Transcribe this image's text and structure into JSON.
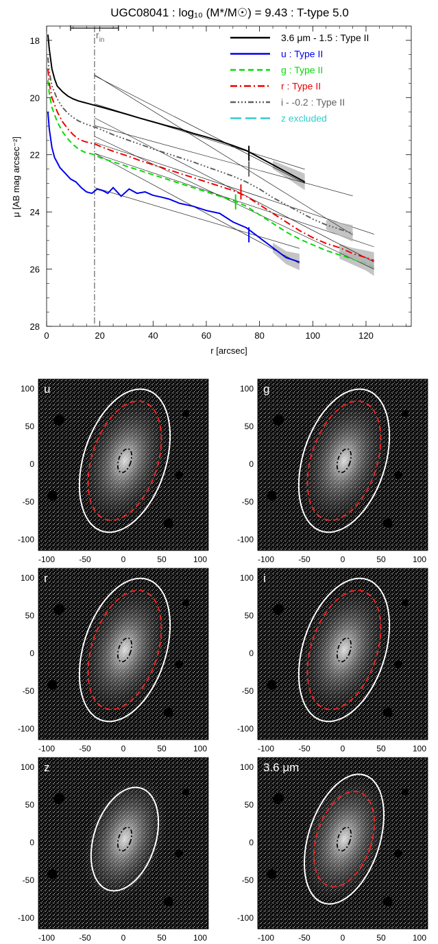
{
  "chart_data": {
    "type": "line",
    "title": "UGC08041 : log₁₀ (M*/M☉) = 9.43 : T-type 5.0",
    "xlabel": "r [arcsec]",
    "ylabel": "μ [AB mag arcsec⁻²]",
    "xlim": [
      0,
      137
    ],
    "ylim": [
      28,
      17.5
    ],
    "xticks": [
      0,
      20,
      40,
      60,
      80,
      100,
      120
    ],
    "yticks": [
      18,
      20,
      22,
      24,
      26,
      28
    ],
    "grid": false,
    "legend_position": "top-right",
    "r_in": 18,
    "r_in_label": "r_in",
    "r_in_bar": [
      9,
      27
    ],
    "series": [
      {
        "name": "3.6 μm - 1.5 : Type II",
        "color": "#000000",
        "dash": "solid",
        "x": [
          0.5,
          1,
          2,
          3,
          4,
          6,
          8,
          10,
          12,
          14,
          16,
          18,
          20,
          25,
          30,
          35,
          40,
          45,
          50,
          55,
          60,
          65,
          70,
          75,
          80,
          85,
          90,
          95,
          97
        ],
        "y": [
          17.8,
          18.3,
          19.0,
          19.35,
          19.6,
          19.8,
          19.95,
          20.05,
          20.12,
          20.17,
          20.22,
          20.27,
          20.32,
          20.45,
          20.58,
          20.72,
          20.85,
          20.98,
          21.1,
          21.25,
          21.38,
          21.52,
          21.68,
          21.85,
          22.1,
          22.35,
          22.6,
          22.85,
          22.95
        ],
        "break_r": 76,
        "break_mu": 21.95
      },
      {
        "name": "u : Type II",
        "color": "#0000ee",
        "dash": "solid",
        "x": [
          0.5,
          1,
          2,
          3,
          5,
          7,
          9,
          11,
          13,
          15,
          17,
          19,
          21,
          23,
          25,
          28,
          31,
          34,
          37,
          40,
          43,
          46,
          50,
          55,
          60,
          65,
          70,
          75,
          80,
          85,
          90,
          95
        ],
        "y": [
          20.5,
          21.1,
          21.75,
          22.1,
          22.45,
          22.65,
          22.85,
          22.95,
          23.15,
          23.3,
          23.35,
          23.2,
          23.25,
          23.35,
          23.15,
          23.45,
          23.2,
          23.35,
          23.3,
          23.42,
          23.48,
          23.55,
          23.7,
          23.8,
          23.95,
          24.05,
          24.35,
          24.55,
          24.9,
          25.25,
          25.6,
          25.75
        ],
        "break_r": 76,
        "break_mu": 24.8
      },
      {
        "name": "g : Type II",
        "color": "#00dd00",
        "dash": "8,5",
        "x": [
          0.5,
          1,
          2,
          4,
          6,
          8,
          10,
          12,
          14,
          16,
          18,
          20,
          25,
          30,
          35,
          40,
          45,
          50,
          55,
          60,
          65,
          70,
          75,
          80,
          85,
          90,
          95,
          100,
          105,
          110,
          115,
          120,
          123
        ],
        "y": [
          19.4,
          19.85,
          20.35,
          20.85,
          21.2,
          21.45,
          21.65,
          21.8,
          21.9,
          21.95,
          22.0,
          22.1,
          22.25,
          22.4,
          22.55,
          22.7,
          22.85,
          23.0,
          23.15,
          23.3,
          23.45,
          23.6,
          23.8,
          24.1,
          24.4,
          24.7,
          24.95,
          25.15,
          25.35,
          25.5,
          25.65,
          25.8,
          25.95
        ],
        "break_r": 71,
        "break_mu": 23.65
      },
      {
        "name": "r : Type II",
        "color": "#ee0000",
        "dash": "10,4,2,4",
        "x": [
          0.5,
          1,
          2,
          4,
          6,
          8,
          10,
          12,
          14,
          16,
          18,
          20,
          25,
          30,
          35,
          40,
          45,
          50,
          55,
          60,
          65,
          70,
          75,
          80,
          85,
          90,
          95,
          100,
          105,
          110,
          115,
          120,
          123
        ],
        "y": [
          19.0,
          19.5,
          20.0,
          20.5,
          20.85,
          21.1,
          21.3,
          21.45,
          21.53,
          21.58,
          21.62,
          21.7,
          21.88,
          22.03,
          22.2,
          22.35,
          22.5,
          22.65,
          22.8,
          22.95,
          23.1,
          23.25,
          23.45,
          23.75,
          24.05,
          24.35,
          24.65,
          24.9,
          25.1,
          25.25,
          25.45,
          25.6,
          25.7
        ],
        "break_r": 73,
        "break_mu": 23.3
      },
      {
        "name": "i - -0.2 : Type II",
        "color": "#606060",
        "dash": "8,3,2,3,2,3,2,3",
        "x": [
          0.5,
          1,
          2,
          4,
          6,
          8,
          10,
          12,
          14,
          16,
          18,
          20,
          25,
          30,
          35,
          40,
          45,
          50,
          55,
          60,
          65,
          70,
          75,
          80,
          85,
          90,
          95,
          100,
          105,
          110,
          115
        ],
        "y": [
          18.6,
          19.1,
          19.6,
          20.05,
          20.35,
          20.55,
          20.7,
          20.82,
          20.9,
          20.97,
          21.03,
          21.1,
          21.3,
          21.47,
          21.63,
          21.8,
          21.95,
          22.1,
          22.25,
          22.42,
          22.58,
          22.75,
          22.95,
          23.2,
          23.5,
          23.75,
          24.0,
          24.25,
          24.45,
          24.6,
          24.75
        ],
        "break_r": 76,
        "break_mu": 22.5
      },
      {
        "name": "z excluded",
        "color": "#33cccc",
        "dash": "16,6",
        "x": [],
        "y": []
      }
    ]
  },
  "panels": [
    {
      "label": "u",
      "ticks_x": [
        "-100",
        "-50",
        "0",
        "50",
        "100"
      ],
      "ticks_y": [
        "100",
        "50",
        "0",
        "-50",
        "-100"
      ]
    },
    {
      "label": "g",
      "ticks_x": [
        "-100",
        "-50",
        "0",
        "50",
        "100"
      ],
      "ticks_y": [
        "100",
        "50",
        "0",
        "-50",
        "-100"
      ]
    },
    {
      "label": "r",
      "ticks_x": [
        "-100",
        "-50",
        "0",
        "50",
        "100"
      ],
      "ticks_y": [
        "100",
        "50",
        "0",
        "-50",
        "-100"
      ]
    },
    {
      "label": "i",
      "ticks_x": [
        "-100",
        "-50",
        "0",
        "50",
        "100"
      ],
      "ticks_y": [
        "100",
        "50",
        "0",
        "-50",
        "-100"
      ]
    },
    {
      "label": "z",
      "ticks_x": [
        "-100",
        "-50",
        "0",
        "50",
        "100"
      ],
      "ticks_y": [
        "100",
        "50",
        "0",
        "-50",
        "-100"
      ]
    },
    {
      "label": "3.6 μm",
      "ticks_x": [
        "-100",
        "-50",
        "0",
        "50",
        "100"
      ],
      "ticks_y": [
        "100",
        "50",
        "0",
        "-50",
        "-100"
      ]
    }
  ],
  "colors": {
    "outer_ellipse": "#ffffff",
    "break_ellipse": "#ee2222",
    "inner_ellipse": "#000000"
  }
}
